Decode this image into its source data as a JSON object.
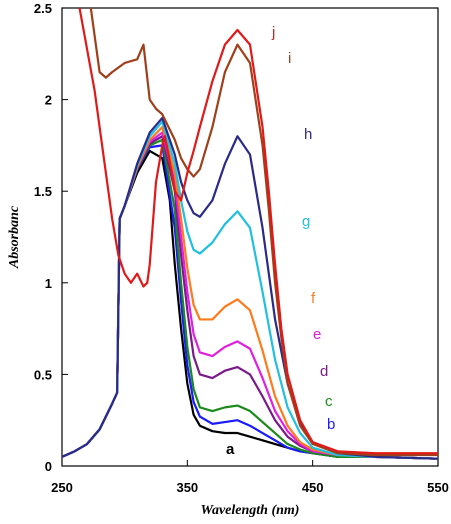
{
  "chart_data": {
    "type": "line",
    "title": "",
    "xlabel": "Wavelength (nm)",
    "ylabel": "Absorbanc",
    "xlim": [
      250,
      550
    ],
    "ylim": [
      0,
      2.5
    ],
    "xticks": [
      250,
      350,
      450,
      550
    ],
    "yticks": [
      0,
      0.5,
      1,
      1.5,
      2,
      2.5
    ],
    "ytick_labels": [
      "0",
      "0.5",
      "1",
      "1.5",
      "2",
      "2.5"
    ],
    "grid": false,
    "series": [
      {
        "name": "a",
        "color": "#000000",
        "x": [
          250,
          260,
          270,
          280,
          290,
          294,
          296,
          300,
          310,
          320,
          330,
          336,
          340,
          345,
          350,
          355,
          360,
          370,
          380,
          390,
          400,
          410,
          420,
          430,
          440,
          450,
          470,
          500,
          550
        ],
        "y": [
          0.05,
          0.08,
          0.12,
          0.2,
          0.34,
          0.4,
          1.35,
          1.42,
          1.6,
          1.72,
          1.68,
          1.45,
          1.1,
          0.75,
          0.45,
          0.28,
          0.22,
          0.19,
          0.18,
          0.18,
          0.16,
          0.14,
          0.12,
          0.1,
          0.08,
          0.07,
          0.05,
          0.05,
          0.04
        ]
      },
      {
        "name": "b",
        "color": "#1a1aff",
        "x": [
          250,
          260,
          270,
          280,
          290,
          294,
          296,
          300,
          310,
          320,
          330,
          340,
          345,
          350,
          355,
          360,
          370,
          380,
          390,
          400,
          410,
          420,
          430,
          440,
          450,
          470,
          500,
          550
        ],
        "y": [
          0.05,
          0.08,
          0.12,
          0.2,
          0.34,
          0.4,
          1.35,
          1.42,
          1.62,
          1.74,
          1.75,
          1.3,
          0.9,
          0.55,
          0.35,
          0.27,
          0.23,
          0.24,
          0.25,
          0.22,
          0.18,
          0.14,
          0.1,
          0.08,
          0.07,
          0.05,
          0.05,
          0.04
        ]
      },
      {
        "name": "c",
        "color": "#1a8a1a",
        "x": [
          250,
          260,
          270,
          280,
          290,
          294,
          296,
          300,
          310,
          320,
          330,
          340,
          345,
          350,
          355,
          360,
          370,
          380,
          390,
          400,
          410,
          420,
          430,
          440,
          450,
          470,
          500,
          550
        ],
        "y": [
          0.05,
          0.08,
          0.12,
          0.2,
          0.34,
          0.4,
          1.35,
          1.42,
          1.62,
          1.75,
          1.78,
          1.4,
          1.0,
          0.65,
          0.42,
          0.32,
          0.3,
          0.32,
          0.33,
          0.3,
          0.24,
          0.18,
          0.12,
          0.09,
          0.07,
          0.05,
          0.05,
          0.04
        ]
      },
      {
        "name": "d",
        "color": "#7a1a8a",
        "x": [
          250,
          260,
          270,
          280,
          290,
          294,
          296,
          300,
          310,
          320,
          330,
          340,
          345,
          350,
          355,
          360,
          370,
          380,
          390,
          400,
          410,
          420,
          430,
          440,
          450,
          470,
          500,
          550
        ],
        "y": [
          0.05,
          0.08,
          0.12,
          0.2,
          0.34,
          0.4,
          1.35,
          1.42,
          1.62,
          1.76,
          1.8,
          1.5,
          1.15,
          0.85,
          0.6,
          0.5,
          0.48,
          0.52,
          0.54,
          0.5,
          0.38,
          0.25,
          0.16,
          0.11,
          0.08,
          0.06,
          0.05,
          0.04
        ]
      },
      {
        "name": "e",
        "color": "#e020e0",
        "x": [
          250,
          260,
          270,
          280,
          290,
          294,
          296,
          300,
          310,
          320,
          330,
          340,
          345,
          350,
          355,
          360,
          370,
          380,
          390,
          400,
          410,
          420,
          430,
          440,
          450,
          470,
          500,
          550
        ],
        "y": [
          0.05,
          0.08,
          0.12,
          0.2,
          0.34,
          0.4,
          1.35,
          1.42,
          1.63,
          1.77,
          1.82,
          1.55,
          1.25,
          0.95,
          0.72,
          0.62,
          0.6,
          0.65,
          0.68,
          0.64,
          0.48,
          0.3,
          0.19,
          0.12,
          0.08,
          0.06,
          0.05,
          0.04
        ]
      },
      {
        "name": "f",
        "color": "#ff7a1a",
        "x": [
          250,
          260,
          270,
          280,
          290,
          294,
          296,
          300,
          310,
          320,
          330,
          340,
          345,
          350,
          355,
          360,
          370,
          380,
          390,
          400,
          410,
          420,
          430,
          440,
          450,
          470,
          500,
          550
        ],
        "y": [
          0.05,
          0.08,
          0.12,
          0.2,
          0.34,
          0.4,
          1.35,
          1.42,
          1.63,
          1.78,
          1.85,
          1.6,
          1.35,
          1.08,
          0.88,
          0.8,
          0.8,
          0.87,
          0.91,
          0.85,
          0.63,
          0.38,
          0.22,
          0.13,
          0.09,
          0.06,
          0.05,
          0.04
        ]
      },
      {
        "name": "g",
        "color": "#20c0e0",
        "x": [
          250,
          260,
          270,
          280,
          290,
          294,
          296,
          300,
          310,
          320,
          330,
          340,
          345,
          350,
          355,
          360,
          370,
          380,
          390,
          400,
          410,
          420,
          430,
          440,
          450,
          470,
          500,
          550
        ],
        "y": [
          0.05,
          0.08,
          0.12,
          0.2,
          0.34,
          0.4,
          1.35,
          1.42,
          1.64,
          1.8,
          1.88,
          1.65,
          1.45,
          1.28,
          1.18,
          1.16,
          1.22,
          1.32,
          1.39,
          1.3,
          0.95,
          0.58,
          0.32,
          0.18,
          0.1,
          0.06,
          0.05,
          0.04
        ]
      },
      {
        "name": "h",
        "color": "#2a2a8a",
        "x": [
          250,
          260,
          270,
          280,
          290,
          294,
          296,
          300,
          310,
          320,
          330,
          340,
          345,
          350,
          355,
          360,
          370,
          380,
          390,
          400,
          410,
          420,
          430,
          440,
          450,
          470,
          500,
          550
        ],
        "y": [
          0.05,
          0.08,
          0.12,
          0.2,
          0.34,
          0.4,
          1.35,
          1.42,
          1.65,
          1.82,
          1.9,
          1.7,
          1.55,
          1.45,
          1.38,
          1.36,
          1.45,
          1.65,
          1.8,
          1.7,
          1.3,
          0.8,
          0.45,
          0.24,
          0.13,
          0.07,
          0.05,
          0.04
        ]
      },
      {
        "name": "i",
        "color": "#a0401a",
        "x": [
          273,
          275,
          280,
          285,
          290,
          300,
          310,
          315,
          320,
          325,
          330,
          335,
          340,
          345,
          350,
          355,
          360,
          370,
          380,
          390,
          400,
          410,
          415,
          420,
          425,
          430,
          440,
          450,
          470,
          500,
          550
        ],
        "y": [
          2.5,
          2.4,
          2.15,
          2.12,
          2.15,
          2.2,
          2.22,
          2.3,
          2.0,
          1.95,
          1.92,
          1.85,
          1.78,
          1.68,
          1.62,
          1.58,
          1.62,
          1.85,
          2.15,
          2.3,
          2.2,
          1.75,
          1.4,
          1.0,
          0.7,
          0.45,
          0.22,
          0.12,
          0.07,
          0.06,
          0.06
        ]
      },
      {
        "name": "j",
        "color": "#e01a1a",
        "x": [
          264,
          268,
          272,
          276,
          280,
          285,
          290,
          295,
          300,
          305,
          310,
          315,
          318,
          320,
          325,
          330,
          332,
          335,
          340,
          345,
          350,
          355,
          360,
          370,
          380,
          390,
          400,
          410,
          415,
          420,
          425,
          430,
          440,
          450,
          470,
          500,
          550
        ],
        "y": [
          2.5,
          2.35,
          2.2,
          2.05,
          1.85,
          1.6,
          1.35,
          1.15,
          1.05,
          1.0,
          1.05,
          0.98,
          1.0,
          1.1,
          1.55,
          1.75,
          1.8,
          1.7,
          1.5,
          1.45,
          1.6,
          1.72,
          1.85,
          2.1,
          2.3,
          2.38,
          2.3,
          1.85,
          1.5,
          1.1,
          0.75,
          0.5,
          0.25,
          0.13,
          0.08,
          0.07,
          0.07
        ]
      }
    ]
  }
}
